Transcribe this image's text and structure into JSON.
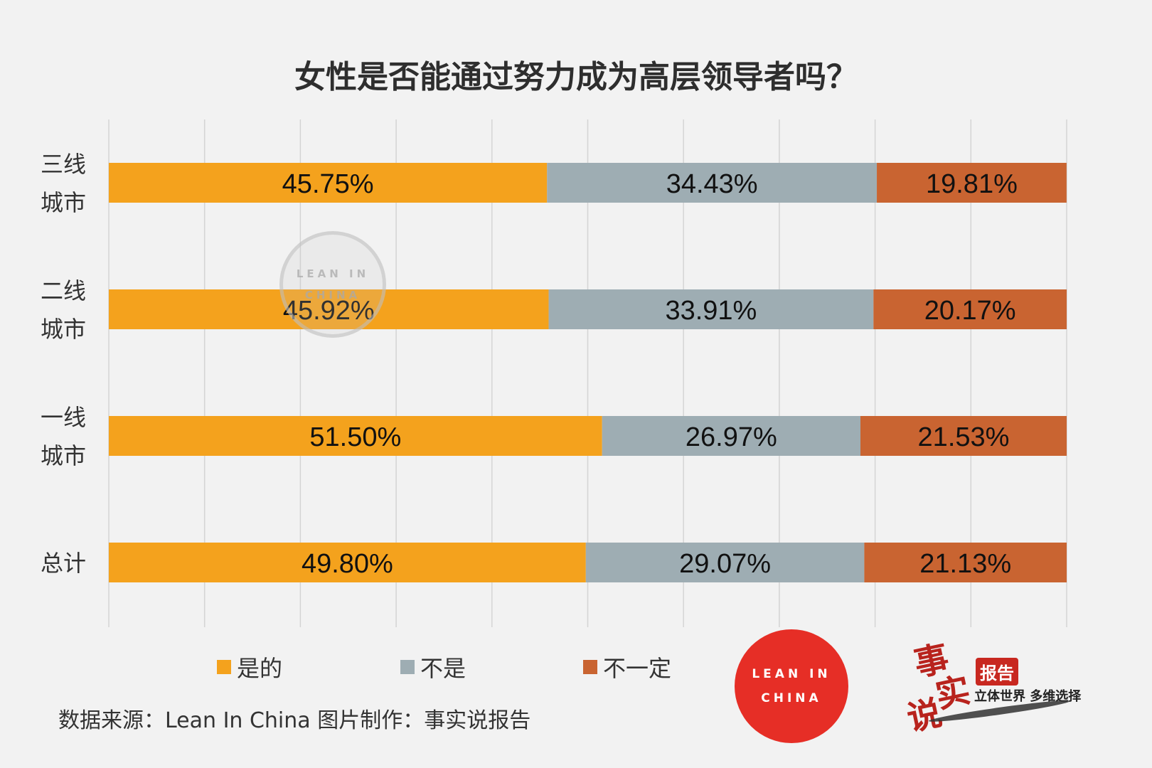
{
  "chart_data": {
    "type": "bar",
    "orientation": "horizontal",
    "stacked": true,
    "title": "女性是否能通过努力成为高层领导者吗？",
    "categories": [
      "三线城市",
      "二线城市",
      "一线城市",
      "总计"
    ],
    "category_labels": [
      [
        "三线",
        "城市"
      ],
      [
        "二线",
        "城市"
      ],
      [
        "一线",
        "城市"
      ],
      [
        "总计"
      ]
    ],
    "series": [
      {
        "name": "是的",
        "color": "#f4a21d",
        "values": [
          45.75,
          45.92,
          51.5,
          49.8
        ],
        "labels": [
          "45.75%",
          "45.92%",
          "51.50%",
          "49.80%"
        ]
      },
      {
        "name": "不是",
        "color": "#9eadb3",
        "values": [
          34.43,
          33.91,
          26.97,
          29.07
        ],
        "labels": [
          "34.43%",
          "33.91%",
          "26.97%",
          "29.07%"
        ]
      },
      {
        "name": "不一定",
        "color": "#c96431",
        "values": [
          19.81,
          20.17,
          21.53,
          21.13
        ],
        "labels": [
          "19.81%",
          "20.17%",
          "21.53%",
          "21.13%"
        ]
      }
    ],
    "xlim": [
      0,
      100
    ],
    "grid": true,
    "legend_position": "bottom"
  },
  "footer": {
    "source": "数据来源：Lean In China  图片制作：事实说报告"
  },
  "logos": {
    "leanin_line1": "LEAN IN",
    "leanin_line2": "CHINA",
    "brand_char_1": "事",
    "brand_char_2": "实",
    "brand_char_3": "说",
    "brand_badge": "报告",
    "brand_slogan": "立体世界 多维选择"
  }
}
